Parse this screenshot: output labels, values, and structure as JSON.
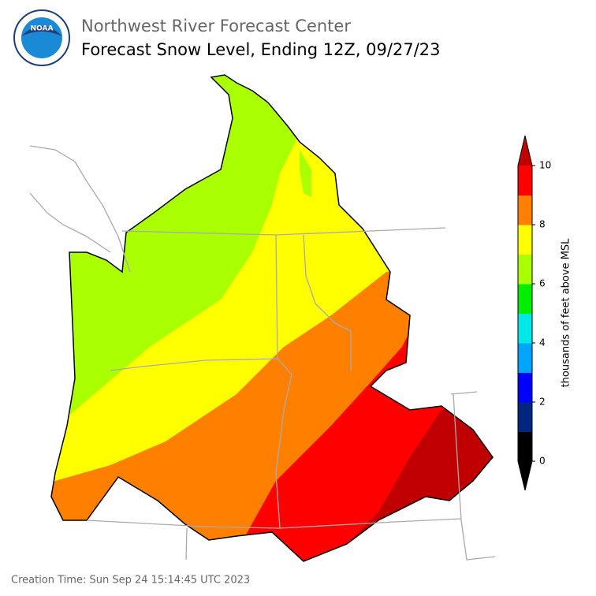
{
  "header": {
    "org": "Northwest River Forecast Center",
    "title": "Forecast Snow Level, Ending 12Z, 09/27/23",
    "logo": "NOAA"
  },
  "colorbar": {
    "label": "thousands of feet above MSL",
    "lim": [
      0,
      10
    ],
    "ticks": [
      0,
      2,
      4,
      6,
      8,
      10
    ],
    "colors": [
      "#000000",
      "#00267f",
      "#0000ff",
      "#00a5ff",
      "#00e8e8",
      "#00ee00",
      "#aaff00",
      "#ffff00",
      "#ff8000",
      "#ff0000"
    ],
    "under_color": "#000000",
    "over_color": "#c00000"
  },
  "footer": {
    "creation": "Creation Time: Sun Sep 24 15:14:45 UTC 2023"
  }
}
